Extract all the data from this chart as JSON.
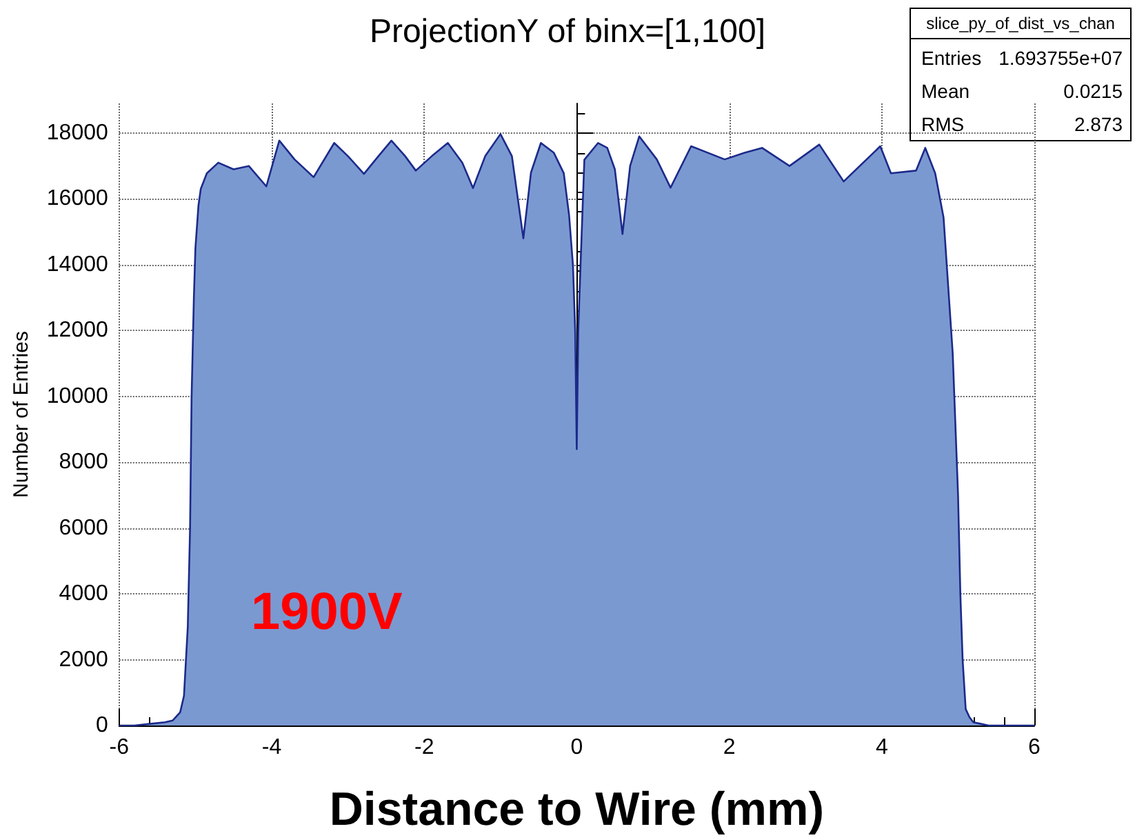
{
  "chart_data": {
    "type": "area",
    "title": "ProjectionY of binx=[1,100]",
    "xlabel": "Distance to Wire (mm)",
    "ylabel": "Number of Entries",
    "annotations": [
      "1900V",
      "slice_py_of_dist_vs_chan",
      "Entries",
      "1.693755e+07",
      "Mean",
      "0.0215",
      "RMS",
      "2.873"
    ],
    "series": [
      {
        "color": "#7b99d1",
        "x": [
          -6,
          -5.8,
          -5.6,
          -5.4,
          -5.3,
          -5.2,
          -5.15,
          -5.1,
          -5.07,
          -5.05,
          -5.02,
          -5,
          -4.96,
          -4.93,
          -4.85,
          -4.7,
          -4.5,
          -4.3,
          -4.07,
          -3.9,
          -3.7,
          -3.45,
          -3.18,
          -3,
          -2.79,
          -2.6,
          -2.43,
          -2.25,
          -2.11,
          -1.9,
          -1.69,
          -1.5,
          -1.36,
          -1.2,
          -1,
          -0.85,
          -0.7,
          -0.6,
          -0.47,
          -0.3,
          -0.17,
          -0.1,
          -0.05,
          -0.02,
          0,
          0.02,
          0.05,
          0.1,
          0.28,
          0.4,
          0.5,
          0.6,
          0.7,
          0.82,
          1.05,
          1.23,
          1.5,
          1.94,
          2.2,
          2.43,
          2.79,
          3.18,
          3.5,
          3.98,
          4.12,
          4.45,
          4.57,
          4.7,
          4.81,
          4.93,
          5,
          5.03,
          5.06,
          5.1,
          5.15,
          5.2,
          5.3,
          5.4,
          5.6,
          5.8,
          6
        ],
        "values": [
          0,
          0,
          50,
          100,
          150,
          400,
          900,
          3000,
          6000,
          10000,
          13000,
          14500,
          15800,
          16300,
          16780,
          17100,
          16900,
          17000,
          16380,
          17770,
          17200,
          16660,
          17700,
          17300,
          16760,
          17300,
          17770,
          17300,
          16860,
          17300,
          17700,
          17100,
          16330,
          17300,
          17970,
          17300,
          14800,
          16800,
          17700,
          17400,
          16780,
          15500,
          14000,
          12000,
          8400,
          12000,
          14000,
          17190,
          17700,
          17550,
          16900,
          14930,
          17000,
          17900,
          17200,
          16340,
          17600,
          17200,
          17400,
          17550,
          17000,
          17650,
          16530,
          17600,
          16780,
          16860,
          17550,
          16780,
          15430,
          11300,
          7000,
          4000,
          2000,
          500,
          250,
          100,
          50,
          0,
          0,
          0,
          0
        ]
      }
    ],
    "xlim": [
      -6,
      6
    ],
    "xticks": [
      -6,
      -4,
      -2,
      0,
      2,
      4,
      6
    ],
    "ylim": [
      0,
      18900
    ],
    "yticks": [
      0,
      2000,
      4000,
      6000,
      8000,
      10000,
      12000,
      14000,
      16000,
      18000
    ],
    "grid": true
  }
}
